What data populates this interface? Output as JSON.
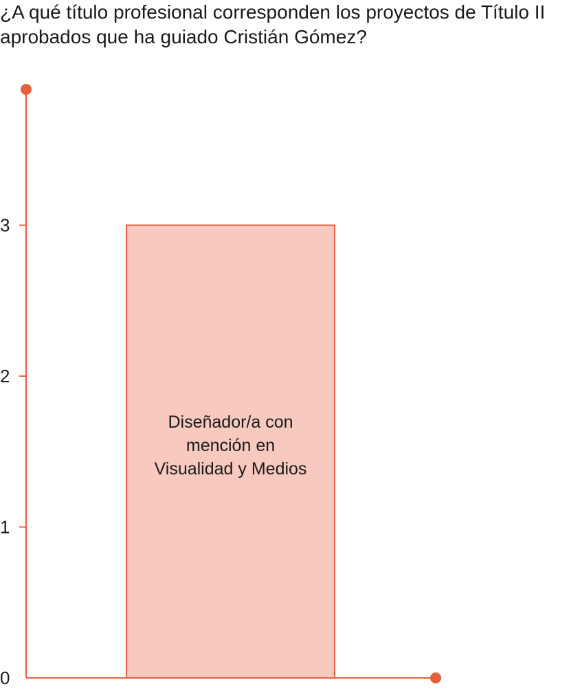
{
  "chart_data": {
    "type": "bar",
    "title": "¿A qué título profesional corresponden los proyectos de Título II aprobados que ha guiado Cristián Gómez?",
    "categories": [
      "Diseñador/a con mención en Visualidad y Medios"
    ],
    "category_label_lines": [
      "Diseñador/a con",
      "mención en",
      "Visualidad y Medios"
    ],
    "values": [
      3
    ],
    "xlabel": "",
    "ylabel": "",
    "ylim": [
      0,
      3.9
    ],
    "yticks": [
      0,
      1,
      2,
      3
    ],
    "ytick_labels": [
      "0",
      "1",
      "2",
      "3"
    ],
    "grid": false,
    "legend": "none",
    "colors": {
      "axis": "#e8603c",
      "bar_fill": "#f8c9bf",
      "bar_stroke": "#e8603c",
      "text": "#1a1a1a"
    }
  }
}
